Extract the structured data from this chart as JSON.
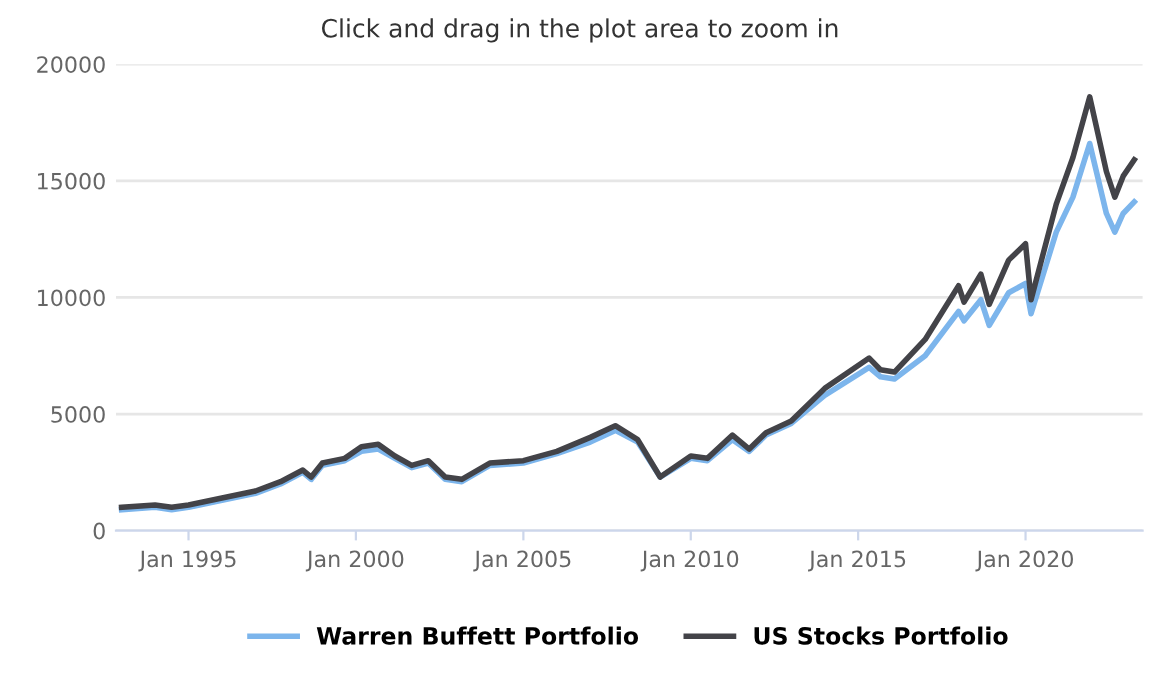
{
  "chart_data": {
    "type": "line",
    "title": "Click and drag in the plot area to zoom in",
    "x": [
      "1993-01",
      "1994-01",
      "1994-07",
      "1995-01",
      "1996-01",
      "1997-01",
      "1997-10",
      "1998-06",
      "1998-09",
      "1999-01",
      "1999-09",
      "2000-03",
      "2000-09",
      "2001-03",
      "2001-09",
      "2002-03",
      "2002-09",
      "2003-03",
      "2004-01",
      "2005-01",
      "2006-01",
      "2007-01",
      "2007-10",
      "2008-06",
      "2009-02",
      "2010-01",
      "2010-07",
      "2011-04",
      "2011-10",
      "2012-04",
      "2013-01",
      "2014-01",
      "2015-05",
      "2015-09",
      "2016-02",
      "2017-01",
      "2018-01",
      "2018-03",
      "2018-09",
      "2018-12",
      "2019-07",
      "2020-01",
      "2020-03",
      "2020-12",
      "2021-06",
      "2021-12",
      "2022-06",
      "2022-09",
      "2022-12",
      "2023-04"
    ],
    "series": [
      {
        "name": "Warren Buffett Portfolio",
        "color": "#7cb5ec",
        "values": [
          900,
          1000,
          900,
          1000,
          1300,
          1600,
          2000,
          2500,
          2200,
          2800,
          3000,
          3400,
          3500,
          3100,
          2700,
          2900,
          2200,
          2100,
          2800,
          2900,
          3300,
          3800,
          4300,
          3800,
          2300,
          3100,
          3000,
          3900,
          3400,
          4100,
          4600,
          5800,
          7000,
          6600,
          6500,
          7500,
          9400,
          9000,
          9900,
          8800,
          10200,
          10600,
          9300,
          12800,
          14300,
          16600,
          13600,
          12800,
          13600,
          14100
        ]
      },
      {
        "name": "US Stocks Portfolio",
        "color": "#434348",
        "values": [
          1000,
          1100,
          1000,
          1100,
          1400,
          1700,
          2100,
          2600,
          2300,
          2900,
          3100,
          3600,
          3700,
          3200,
          2800,
          3000,
          2300,
          2200,
          2900,
          3000,
          3400,
          4000,
          4500,
          3900,
          2300,
          3200,
          3100,
          4100,
          3500,
          4200,
          4700,
          6100,
          7400,
          6900,
          6800,
          8200,
          10500,
          9800,
          11000,
          9700,
          11600,
          12300,
          9900,
          14000,
          16000,
          18600,
          15400,
          14300,
          15200,
          15900
        ]
      }
    ],
    "xlim": [
      "1992-11",
      "2023-07"
    ],
    "xticks": [
      {
        "value": "1995-01",
        "label": "Jan 1995"
      },
      {
        "value": "2000-01",
        "label": "Jan 2000"
      },
      {
        "value": "2005-01",
        "label": "Jan 2005"
      },
      {
        "value": "2010-01",
        "label": "Jan 2010"
      },
      {
        "value": "2015-01",
        "label": "Jan 2015"
      },
      {
        "value": "2020-01",
        "label": "Jan 2020"
      }
    ],
    "ylim": [
      0,
      20000
    ],
    "yticks": [
      0,
      5000,
      10000,
      15000,
      20000
    ],
    "grid": "y",
    "legend": "bottom"
  }
}
